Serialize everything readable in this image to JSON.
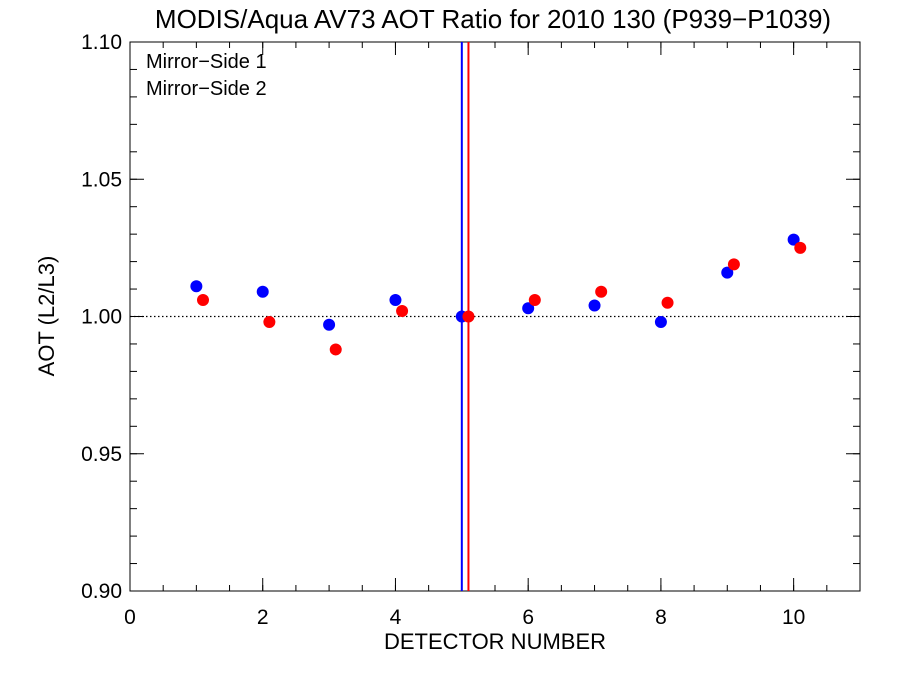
{
  "chart_data": {
    "type": "scatter",
    "title": "MODIS/Aqua AV73 AOT Ratio for 2010 130 (P939−P1039)",
    "xlabel": "DETECTOR NUMBER",
    "ylabel": "AOT (L2/L3)",
    "xlim": [
      0,
      11
    ],
    "ylim": [
      0.9,
      1.1
    ],
    "x_ticks": [
      0,
      2,
      4,
      6,
      8,
      10
    ],
    "x_tick_labels": [
      "0",
      "2",
      "4",
      "6",
      "8",
      "10"
    ],
    "y_ticks": [
      0.9,
      0.95,
      1.0,
      1.05,
      1.1
    ],
    "y_tick_labels": [
      "0.90",
      "0.95",
      "1.00",
      "1.05",
      "1.10"
    ],
    "x_minor_step": 0.5,
    "y_minor_step": 0.01,
    "grid": false,
    "legend_position": "top-left",
    "reference_line": {
      "y": 1.0,
      "style": "dotted"
    },
    "series": [
      {
        "name": "Mirror−Side 1",
        "color": "#0000ff",
        "x": [
          1,
          2,
          3,
          4,
          5,
          6,
          7,
          8,
          9,
          10
        ],
        "y": [
          1.011,
          1.009,
          0.997,
          1.006,
          1.0,
          1.003,
          1.004,
          0.998,
          1.016,
          1.028
        ],
        "vline_x": 5.0
      },
      {
        "name": "Mirror−Side 2",
        "color": "#ff0000",
        "x": [
          1.1,
          2.1,
          3.1,
          4.1,
          5.1,
          6.1,
          7.1,
          8.1,
          9.1,
          10.1
        ],
        "y": [
          1.006,
          0.998,
          0.988,
          1.002,
          1.0,
          1.006,
          1.009,
          1.005,
          1.019,
          1.025
        ],
        "vline_x": 5.1
      }
    ]
  }
}
